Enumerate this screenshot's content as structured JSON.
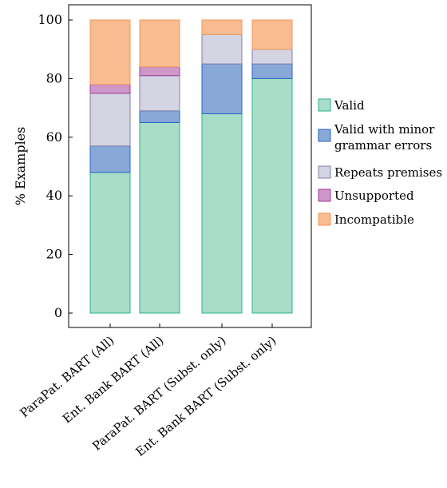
{
  "chart_data": {
    "type": "bar",
    "stacked": true,
    "categories": [
      "ParaPat. BART (All)",
      "Ent. Bank BART (All)",
      "ParaPat. BART (Subst. only)",
      "Ent. Bank BART (Subst. only)"
    ],
    "ylabel": "% Examples",
    "ylim": [
      0,
      100
    ],
    "yticks": [
      0,
      20,
      40,
      60,
      80,
      100
    ],
    "grid": false,
    "legend_position": "right",
    "series": [
      {
        "name": "Valid",
        "values": [
          48,
          65,
          68,
          80
        ],
        "fill": "#a8ddc8",
        "stroke": "#2bb38a"
      },
      {
        "name": "Valid with minor grammar errors",
        "values": [
          9,
          4,
          17,
          5
        ],
        "fill": "#88a8d8",
        "stroke": "#2a64c4"
      },
      {
        "name": "Repeats premises",
        "values": [
          18,
          12,
          10,
          5
        ],
        "fill": "#d4d4e2",
        "stroke": "#8080a8"
      },
      {
        "name": "Unsupported",
        "values": [
          3,
          3,
          0,
          0
        ],
        "fill": "#cf96c9",
        "stroke": "#a23f9a"
      },
      {
        "name": "Incompatible",
        "values": [
          22,
          16,
          5,
          10
        ],
        "fill": "#f9bb90",
        "stroke": "#f09a5a"
      }
    ]
  }
}
